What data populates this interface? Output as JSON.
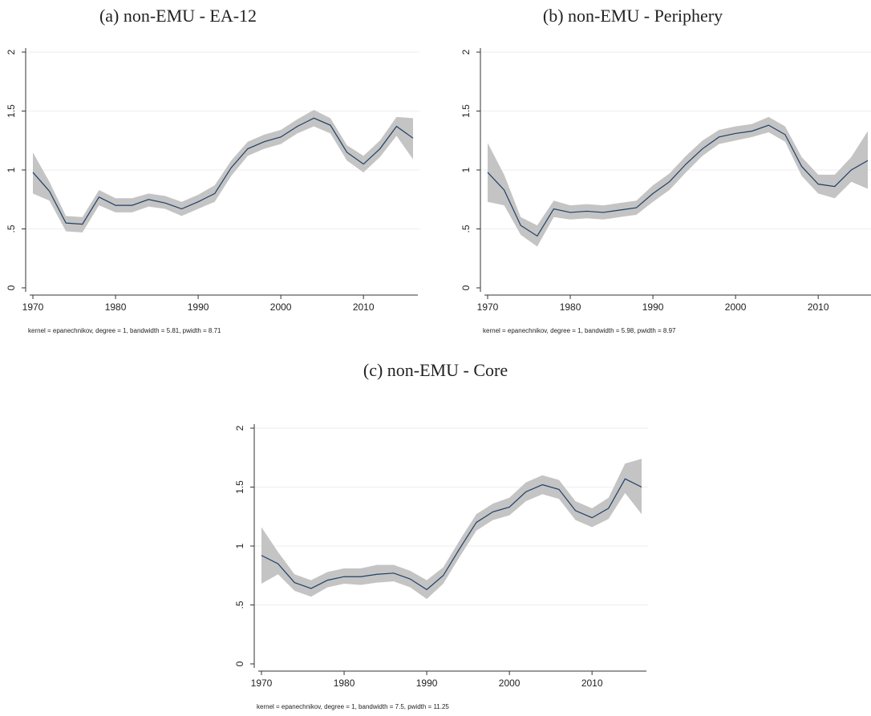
{
  "chart_data": [
    {
      "type": "line",
      "title": "(a) non-EMU - EA-12",
      "note": "kernel = epanechnikov, degree = 1, bandwidth = 5.81, pwidth = 8.71",
      "x": [
        1970,
        1972,
        1974,
        1976,
        1978,
        1980,
        1982,
        1984,
        1986,
        1988,
        1990,
        1992,
        1994,
        1996,
        1998,
        2000,
        2002,
        2004,
        2006,
        2008,
        2010,
        2012,
        2014,
        2016
      ],
      "values": [
        0.98,
        0.82,
        0.55,
        0.54,
        0.77,
        0.7,
        0.7,
        0.75,
        0.72,
        0.67,
        0.73,
        0.8,
        1.02,
        1.18,
        1.24,
        1.28,
        1.37,
        1.44,
        1.38,
        1.15,
        1.05,
        1.18,
        1.37,
        1.27
      ],
      "lower": [
        0.8,
        0.74,
        0.48,
        0.47,
        0.7,
        0.64,
        0.64,
        0.69,
        0.67,
        0.61,
        0.67,
        0.73,
        0.95,
        1.12,
        1.18,
        1.22,
        1.31,
        1.37,
        1.31,
        1.08,
        0.98,
        1.11,
        1.29,
        1.09
      ],
      "upper": [
        1.15,
        0.9,
        0.61,
        0.6,
        0.83,
        0.76,
        0.76,
        0.8,
        0.78,
        0.73,
        0.79,
        0.87,
        1.08,
        1.24,
        1.3,
        1.34,
        1.43,
        1.51,
        1.44,
        1.21,
        1.12,
        1.25,
        1.45,
        1.44
      ],
      "color": "#1f3f66",
      "band_color": "#c4c4c4",
      "xlim": [
        1970,
        2016
      ],
      "xticks": [
        1970,
        1980,
        1990,
        2000,
        2010
      ],
      "ylim": [
        0,
        2
      ],
      "yticks": [
        0,
        {
          "value": 0.5,
          "label": ".5"
        },
        1,
        1.5,
        2
      ],
      "grid": true
    },
    {
      "type": "line",
      "title": "(b) non-EMU - Periphery",
      "note": "kernel = epanechnikov, degree = 1, bandwidth = 5.98, pwidth = 8.97",
      "x": [
        1970,
        1972,
        1974,
        1976,
        1978,
        1980,
        1982,
        1984,
        1986,
        1988,
        1990,
        1992,
        1994,
        1996,
        1998,
        2000,
        2002,
        2004,
        2006,
        2008,
        2010,
        2012,
        2014,
        2016
      ],
      "values": [
        0.98,
        0.83,
        0.53,
        0.44,
        0.67,
        0.64,
        0.65,
        0.64,
        0.66,
        0.68,
        0.8,
        0.9,
        1.05,
        1.18,
        1.28,
        1.31,
        1.33,
        1.38,
        1.3,
        1.03,
        0.88,
        0.86,
        1.0,
        1.08
      ],
      "lower": [
        0.73,
        0.7,
        0.45,
        0.35,
        0.6,
        0.58,
        0.59,
        0.58,
        0.6,
        0.62,
        0.73,
        0.83,
        0.98,
        1.12,
        1.22,
        1.25,
        1.28,
        1.32,
        1.24,
        0.95,
        0.8,
        0.76,
        0.9,
        0.84
      ],
      "upper": [
        1.23,
        0.96,
        0.6,
        0.53,
        0.74,
        0.7,
        0.71,
        0.7,
        0.72,
        0.74,
        0.87,
        0.97,
        1.12,
        1.25,
        1.34,
        1.37,
        1.39,
        1.45,
        1.37,
        1.11,
        0.96,
        0.96,
        1.11,
        1.33
      ],
      "color": "#1f3f66",
      "band_color": "#c4c4c4",
      "xlim": [
        1970,
        2016
      ],
      "xticks": [
        1970,
        1980,
        1990,
        2000,
        2010
      ],
      "ylim": [
        0,
        2
      ],
      "yticks": [
        0,
        {
          "value": 0.5,
          "label": ".5"
        },
        1,
        1.5,
        2
      ],
      "grid": true
    },
    {
      "type": "line",
      "title": "(c) non-EMU - Core",
      "note": "kernel = epanechnikov, degree = 1, bandwidth = 7.5, pwidth = 11.25",
      "x": [
        1970,
        1972,
        1974,
        1976,
        1978,
        1980,
        1982,
        1984,
        1986,
        1988,
        1990,
        1992,
        1994,
        1996,
        1998,
        2000,
        2002,
        2004,
        2006,
        2008,
        2010,
        2012,
        2014,
        2016
      ],
      "values": [
        0.92,
        0.85,
        0.69,
        0.64,
        0.71,
        0.74,
        0.74,
        0.76,
        0.77,
        0.72,
        0.63,
        0.75,
        0.98,
        1.2,
        1.29,
        1.33,
        1.46,
        1.52,
        1.48,
        1.3,
        1.24,
        1.32,
        1.57,
        1.5
      ],
      "lower": [
        0.68,
        0.76,
        0.62,
        0.57,
        0.65,
        0.68,
        0.67,
        0.69,
        0.7,
        0.65,
        0.55,
        0.68,
        0.91,
        1.13,
        1.22,
        1.26,
        1.38,
        1.44,
        1.4,
        1.22,
        1.16,
        1.23,
        1.45,
        1.27
      ],
      "upper": [
        1.16,
        0.95,
        0.76,
        0.71,
        0.78,
        0.81,
        0.81,
        0.84,
        0.84,
        0.79,
        0.71,
        0.82,
        1.05,
        1.27,
        1.36,
        1.41,
        1.54,
        1.6,
        1.56,
        1.38,
        1.32,
        1.41,
        1.7,
        1.74
      ],
      "color": "#1f3f66",
      "band_color": "#c4c4c4",
      "xlim": [
        1970,
        2016
      ],
      "xticks": [
        1970,
        1980,
        1990,
        2000,
        2010
      ],
      "ylim": [
        0,
        2
      ],
      "yticks": [
        0,
        {
          "value": 0.5,
          "label": ".5"
        },
        1,
        1.5,
        2
      ],
      "grid": true
    }
  ]
}
